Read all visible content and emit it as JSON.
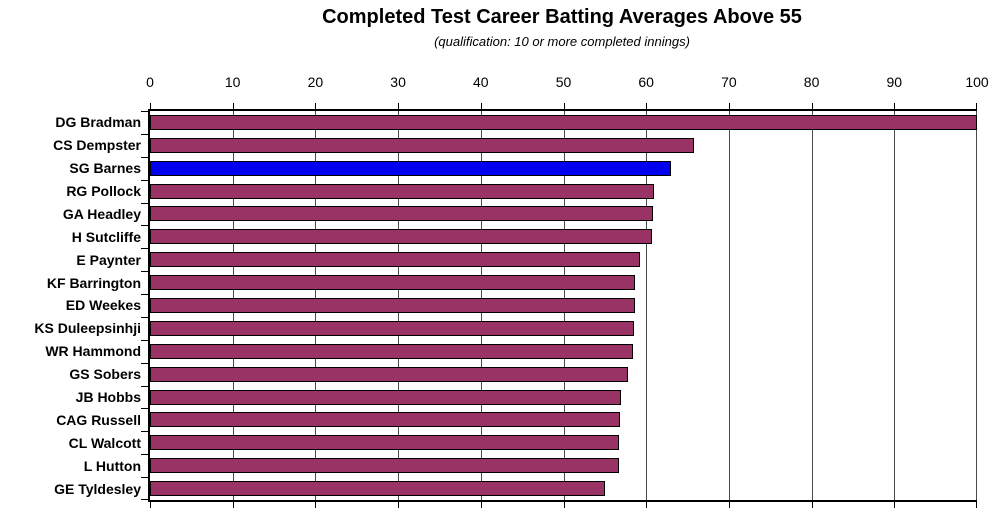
{
  "chart_data": {
    "type": "bar",
    "orientation": "horizontal",
    "title": "Completed Test Career Batting Averages Above 55",
    "subtitle": "(qualification: 10 or more completed innings)",
    "categories": [
      "DG Bradman",
      "CS Dempster",
      "SG Barnes",
      "RG Pollock",
      "GA Headley",
      "H Sutcliffe",
      "E Paynter",
      "KF Barrington",
      "ED Weekes",
      "KS Duleepsinhji",
      "WR Hammond",
      "GS Sobers",
      "JB Hobbs",
      "CAG Russell",
      "CL Walcott",
      "L Hutton",
      "GE Tyldesley"
    ],
    "values": [
      99.94,
      65.72,
      63.05,
      60.97,
      60.83,
      60.73,
      59.23,
      58.67,
      58.61,
      58.52,
      58.45,
      57.78,
      56.94,
      56.87,
      56.68,
      56.67,
      55.0
    ],
    "xlim": [
      0,
      100
    ],
    "xticks": [
      0,
      10,
      20,
      30,
      40,
      50,
      60,
      70,
      80,
      90,
      100
    ],
    "grid": true,
    "legend": false,
    "value_axis_position": "top",
    "highlight_category": "SG Barnes",
    "highlight_index": 2,
    "colors": {
      "bar": "#993366",
      "bar_border": "#000000",
      "highlight_bar": "#0000EE",
      "gridline": "#4a4a4a",
      "axis": "#000000",
      "text": "#000000",
      "background": "#FFFFFF"
    }
  }
}
